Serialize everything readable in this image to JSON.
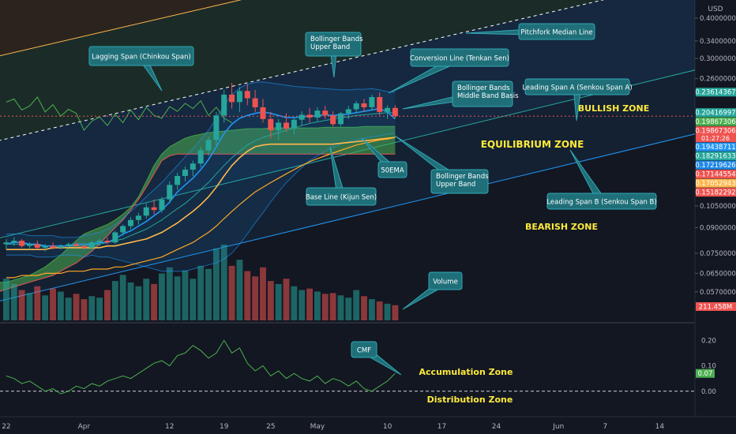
{
  "chart_data": {
    "type": "line",
    "subtype": "candlestick",
    "title": "",
    "axis_unit_label": "USD",
    "price_axis": {
      "scale": "log",
      "range": [
        0.0465,
        0.455
      ],
      "ticks": [
        {
          "label": "0.40000000",
          "value": 0.4
        },
        {
          "label": "0.34000000",
          "value": 0.34
        },
        {
          "label": "0.30000000",
          "value": 0.3
        },
        {
          "label": "0.26000000",
          "value": 0.26
        },
        {
          "label": "0.10500000",
          "value": 0.105
        },
        {
          "label": "0.09000000",
          "value": 0.09
        },
        {
          "label": "0.07500000",
          "value": 0.075
        },
        {
          "label": "0.06500000",
          "value": 0.065
        },
        {
          "label": "0.05700000",
          "value": 0.057
        }
      ]
    },
    "price_badges": [
      {
        "label": "0.23614367",
        "value": 0.23614367,
        "color": "#26a69a"
      },
      {
        "label": "0.20416997",
        "value": 0.20416997,
        "color": "#26a69a"
      },
      {
        "label": "0.19867306",
        "value": 0.19867306,
        "color": "#4caf50"
      },
      {
        "label": "0.19867306",
        "value": 0.19867306,
        "color": "#ef5350",
        "sub": "01:27:26"
      },
      {
        "label": "0.19438711",
        "value": 0.19438711,
        "color": "#2196f3"
      },
      {
        "label": "0.18291633",
        "value": 0.18291633,
        "color": "#26a69a"
      },
      {
        "label": "0.17219626",
        "value": 0.17219626,
        "color": "#1e88e5"
      },
      {
        "label": "0.17144554",
        "value": 0.17144554,
        "color": "#ef5350"
      },
      {
        "label": "0.17052943",
        "value": 0.17052943,
        "color": "#ffb74d"
      },
      {
        "label": "0.15182292",
        "value": 0.15182292,
        "color": "#ef5350"
      }
    ],
    "volume_badge": {
      "label": "211.458M",
      "color": "#ef5350"
    },
    "cmf_axis": {
      "range": [
        -0.1,
        0.26
      ],
      "ticks": [
        {
          "label": "0.20",
          "value": 0.2
        },
        {
          "label": "0.10",
          "value": 0.1
        },
        {
          "label": "0.00",
          "value": 0.0
        }
      ],
      "badge": {
        "label": "0.07",
        "value": 0.07,
        "color": "#4caf50"
      }
    },
    "time_axis": {
      "ticks": [
        {
          "label": "22",
          "index": 0
        },
        {
          "label": "Apr",
          "index": 10
        },
        {
          "label": "12",
          "index": 21
        },
        {
          "label": "19",
          "index": 28
        },
        {
          "label": "25",
          "index": 34
        },
        {
          "label": "May",
          "index": 40
        },
        {
          "label": "10",
          "index": 49
        },
        {
          "label": "17",
          "index": 56
        },
        {
          "label": "24",
          "index": 63
        },
        {
          "label": "Jun",
          "index": 71
        },
        {
          "label": "7",
          "index": 77
        },
        {
          "label": "14",
          "index": 84
        }
      ]
    },
    "candles": [
      [
        0.08,
        0.083,
        0.077,
        0.081
      ],
      [
        0.081,
        0.084,
        0.079,
        0.082
      ],
      [
        0.082,
        0.083,
        0.078,
        0.079
      ],
      [
        0.079,
        0.081,
        0.077,
        0.08
      ],
      [
        0.08,
        0.082,
        0.077,
        0.078
      ],
      [
        0.078,
        0.08,
        0.076,
        0.079
      ],
      [
        0.079,
        0.081,
        0.077,
        0.078
      ],
      [
        0.078,
        0.08,
        0.077,
        0.079
      ],
      [
        0.079,
        0.081,
        0.078,
        0.08
      ],
      [
        0.08,
        0.081,
        0.078,
        0.079
      ],
      [
        0.079,
        0.08,
        0.077,
        0.078
      ],
      [
        0.078,
        0.082,
        0.077,
        0.081
      ],
      [
        0.081,
        0.083,
        0.079,
        0.082
      ],
      [
        0.082,
        0.084,
        0.08,
        0.081
      ],
      [
        0.081,
        0.088,
        0.08,
        0.087
      ],
      [
        0.087,
        0.092,
        0.085,
        0.091
      ],
      [
        0.091,
        0.097,
        0.089,
        0.095
      ],
      [
        0.095,
        0.1,
        0.092,
        0.098
      ],
      [
        0.098,
        0.107,
        0.096,
        0.104
      ],
      [
        0.104,
        0.11,
        0.099,
        0.102
      ],
      [
        0.102,
        0.112,
        0.1,
        0.11
      ],
      [
        0.11,
        0.125,
        0.107,
        0.122
      ],
      [
        0.122,
        0.133,
        0.118,
        0.13
      ],
      [
        0.13,
        0.139,
        0.125,
        0.136
      ],
      [
        0.136,
        0.145,
        0.13,
        0.142
      ],
      [
        0.142,
        0.16,
        0.138,
        0.156
      ],
      [
        0.156,
        0.172,
        0.15,
        0.168
      ],
      [
        0.168,
        0.205,
        0.162,
        0.2
      ],
      [
        0.2,
        0.24,
        0.19,
        0.232
      ],
      [
        0.232,
        0.252,
        0.21,
        0.22
      ],
      [
        0.22,
        0.245,
        0.205,
        0.238
      ],
      [
        0.238,
        0.25,
        0.215,
        0.226
      ],
      [
        0.226,
        0.24,
        0.205,
        0.212
      ],
      [
        0.212,
        0.225,
        0.19,
        0.195
      ],
      [
        0.195,
        0.205,
        0.17,
        0.18
      ],
      [
        0.18,
        0.195,
        0.168,
        0.19
      ],
      [
        0.19,
        0.203,
        0.178,
        0.182
      ],
      [
        0.182,
        0.198,
        0.175,
        0.194
      ],
      [
        0.194,
        0.206,
        0.186,
        0.201
      ],
      [
        0.201,
        0.211,
        0.19,
        0.197
      ],
      [
        0.197,
        0.212,
        0.192,
        0.207
      ],
      [
        0.207,
        0.214,
        0.195,
        0.2
      ],
      [
        0.2,
        0.206,
        0.185,
        0.188
      ],
      [
        0.188,
        0.205,
        0.185,
        0.203
      ],
      [
        0.203,
        0.214,
        0.195,
        0.209
      ],
      [
        0.209,
        0.222,
        0.203,
        0.218
      ],
      [
        0.218,
        0.225,
        0.205,
        0.212
      ],
      [
        0.212,
        0.232,
        0.208,
        0.228
      ],
      [
        0.228,
        0.236,
        0.2,
        0.205
      ],
      [
        0.205,
        0.215,
        0.195,
        0.211
      ],
      [
        0.211,
        0.215,
        0.196,
        0.199
      ]
    ],
    "volume_relative": [
      0.55,
      0.48,
      0.4,
      0.36,
      0.45,
      0.33,
      0.42,
      0.38,
      0.3,
      0.35,
      0.28,
      0.32,
      0.3,
      0.4,
      0.52,
      0.6,
      0.5,
      0.45,
      0.55,
      0.48,
      0.62,
      0.7,
      0.58,
      0.66,
      0.55,
      0.72,
      0.68,
      0.95,
      1.0,
      0.72,
      0.8,
      0.65,
      0.58,
      0.7,
      0.52,
      0.48,
      0.55,
      0.45,
      0.4,
      0.42,
      0.38,
      0.35,
      0.36,
      0.33,
      0.3,
      0.4,
      0.32,
      0.28,
      0.25,
      0.22,
      0.2
    ],
    "cmf_values": [
      0.06,
      0.05,
      0.03,
      0.04,
      0.02,
      0.0,
      0.01,
      -0.01,
      0.0,
      0.02,
      0.01,
      0.03,
      0.02,
      0.04,
      0.05,
      0.06,
      0.05,
      0.07,
      0.09,
      0.11,
      0.12,
      0.1,
      0.14,
      0.15,
      0.18,
      0.16,
      0.13,
      0.15,
      0.2,
      0.15,
      0.17,
      0.11,
      0.08,
      0.1,
      0.06,
      0.08,
      0.05,
      0.07,
      0.05,
      0.04,
      0.06,
      0.03,
      0.05,
      0.04,
      0.02,
      0.04,
      0.01,
      0.0,
      0.02,
      0.04,
      0.07
    ],
    "bollinger_upper": [
      0.086,
      0.086,
      0.086,
      0.085,
      0.085,
      0.085,
      0.085,
      0.084,
      0.084,
      0.084,
      0.085,
      0.086,
      0.087,
      0.089,
      0.092,
      0.096,
      0.101,
      0.106,
      0.112,
      0.118,
      0.124,
      0.132,
      0.14,
      0.149,
      0.158,
      0.168,
      0.18,
      0.196,
      0.215,
      0.232,
      0.243,
      0.25,
      0.253,
      0.254,
      0.252,
      0.25,
      0.248,
      0.246,
      0.245,
      0.244,
      0.243,
      0.242,
      0.241,
      0.24,
      0.24,
      0.241,
      0.241,
      0.242,
      0.24,
      0.237,
      0.236
    ],
    "bollinger_middle": [
      0.08,
      0.08,
      0.08,
      0.08,
      0.079,
      0.079,
      0.079,
      0.079,
      0.079,
      0.079,
      0.079,
      0.08,
      0.08,
      0.081,
      0.082,
      0.083,
      0.085,
      0.087,
      0.089,
      0.092,
      0.095,
      0.099,
      0.103,
      0.107,
      0.112,
      0.118,
      0.124,
      0.132,
      0.14,
      0.148,
      0.155,
      0.162,
      0.167,
      0.171,
      0.174,
      0.177,
      0.18,
      0.183,
      0.186,
      0.189,
      0.191,
      0.193,
      0.195,
      0.197,
      0.198,
      0.2,
      0.201,
      0.202,
      0.203,
      0.204,
      0.204
    ],
    "bollinger_lower": [
      0.074,
      0.074,
      0.074,
      0.074,
      0.073,
      0.073,
      0.073,
      0.074,
      0.074,
      0.074,
      0.073,
      0.074,
      0.073,
      0.073,
      0.072,
      0.071,
      0.07,
      0.069,
      0.068,
      0.067,
      0.066,
      0.066,
      0.066,
      0.066,
      0.067,
      0.068,
      0.069,
      0.07,
      0.072,
      0.075,
      0.08,
      0.086,
      0.093,
      0.1,
      0.108,
      0.116,
      0.124,
      0.131,
      0.138,
      0.145,
      0.15,
      0.155,
      0.159,
      0.163,
      0.166,
      0.168,
      0.17,
      0.172,
      0.173,
      0.175,
      0.176
    ],
    "conversion_line": [
      0.08,
      0.081,
      0.081,
      0.08,
      0.08,
      0.079,
      0.079,
      0.079,
      0.079,
      0.08,
      0.08,
      0.08,
      0.081,
      0.081,
      0.083,
      0.086,
      0.088,
      0.091,
      0.094,
      0.098,
      0.102,
      0.108,
      0.116,
      0.122,
      0.128,
      0.136,
      0.146,
      0.16,
      0.176,
      0.188,
      0.196,
      0.2,
      0.203,
      0.205,
      0.203,
      0.2,
      0.197,
      0.197,
      0.198,
      0.199,
      0.2,
      0.201,
      0.2,
      0.201,
      0.202,
      0.204,
      0.206,
      0.208,
      0.21,
      0.205,
      0.195
    ],
    "base_line": [
      0.077,
      0.077,
      0.077,
      0.077,
      0.077,
      0.077,
      0.078,
      0.078,
      0.078,
      0.078,
      0.078,
      0.078,
      0.078,
      0.079,
      0.079,
      0.08,
      0.081,
      0.082,
      0.083,
      0.085,
      0.087,
      0.09,
      0.093,
      0.097,
      0.101,
      0.106,
      0.112,
      0.12,
      0.13,
      0.14,
      0.148,
      0.155,
      0.16,
      0.162,
      0.163,
      0.163,
      0.163,
      0.163,
      0.163,
      0.163,
      0.163,
      0.163,
      0.163,
      0.164,
      0.165,
      0.166,
      0.167,
      0.168,
      0.169,
      0.17,
      0.171
    ],
    "ema_50": [
      0.063,
      0.063,
      0.064,
      0.064,
      0.064,
      0.065,
      0.065,
      0.065,
      0.066,
      0.066,
      0.066,
      0.067,
      0.067,
      0.067,
      0.068,
      0.068,
      0.069,
      0.07,
      0.071,
      0.072,
      0.073,
      0.075,
      0.077,
      0.079,
      0.081,
      0.084,
      0.087,
      0.091,
      0.096,
      0.101,
      0.106,
      0.111,
      0.116,
      0.12,
      0.124,
      0.128,
      0.132,
      0.136,
      0.14,
      0.144,
      0.147,
      0.15,
      0.153,
      0.156,
      0.159,
      0.162,
      0.164,
      0.166,
      0.168,
      0.169,
      0.171
    ],
    "lagging_span": [
      0.22,
      0.225,
      0.208,
      0.214,
      0.228,
      0.205,
      0.216,
      0.199,
      0.209,
      0.203,
      0.18,
      0.192,
      0.198,
      0.186,
      0.202,
      0.19,
      0.208,
      0.194,
      0.212,
      0.2,
      0.196,
      0.213,
      0.206,
      0.218,
      0.21,
      0.222,
      0.2,
      0.212,
      0.196,
      0.19
    ],
    "lagging_span_offset": -25,
    "senkou_a": [
      0.056,
      0.056,
      0.056,
      0.056,
      0.056,
      0.057,
      0.057,
      0.057,
      0.057,
      0.057,
      0.058,
      0.058,
      0.058,
      0.058,
      0.058,
      0.058,
      0.058,
      0.058,
      0.058,
      0.059,
      0.059,
      0.059,
      0.06,
      0.06,
      0.06,
      0.061,
      0.061,
      0.062,
      0.063,
      0.064,
      0.066,
      0.068,
      0.071,
      0.074,
      0.078,
      0.082,
      0.086,
      0.088,
      0.09,
      0.092,
      0.095,
      0.099,
      0.104,
      0.112,
      0.125,
      0.14,
      0.152,
      0.16,
      0.165,
      0.17,
      0.173,
      0.175,
      0.177,
      0.178,
      0.179,
      0.18,
      0.181,
      0.182,
      0.182,
      0.182,
      0.183,
      0.183,
      0.183,
      0.183,
      0.183,
      0.183,
      0.183,
      0.184,
      0.184,
      0.184,
      0.184,
      0.184,
      0.185,
      0.185,
      0.185,
      0.185,
      0.185
    ],
    "senkou_b": [
      0.046,
      0.046,
      0.046,
      0.046,
      0.046,
      0.046,
      0.046,
      0.047,
      0.047,
      0.047,
      0.047,
      0.047,
      0.047,
      0.048,
      0.048,
      0.049,
      0.05,
      0.05,
      0.051,
      0.051,
      0.052,
      0.053,
      0.054,
      0.055,
      0.056,
      0.057,
      0.058,
      0.059,
      0.06,
      0.061,
      0.062,
      0.063,
      0.064,
      0.066,
      0.068,
      0.07,
      0.073,
      0.076,
      0.08,
      0.085,
      0.09,
      0.095,
      0.102,
      0.11,
      0.12,
      0.132,
      0.145,
      0.15,
      0.152,
      0.152,
      0.152,
      0.152,
      0.152,
      0.152,
      0.152,
      0.152,
      0.152,
      0.152,
      0.152,
      0.152,
      0.152,
      0.152,
      0.152,
      0.152,
      0.152,
      0.152,
      0.152,
      0.152,
      0.152,
      0.152,
      0.152,
      0.152,
      0.152,
      0.152,
      0.152,
      0.152,
      0.152
    ],
    "cloud_start_index": -26,
    "pitchfork": {
      "median": [
        [
          -12,
          0.145
        ],
        [
          84,
          0.5
        ]
      ],
      "upper": [
        [
          -12,
          0.265
        ],
        [
          84,
          0.91
        ]
      ],
      "lower": [
        [
          -12,
          0.072
        ],
        [
          84,
          0.26
        ]
      ],
      "outer_upper": [
        [
          -12,
          0.42
        ],
        [
          84,
          1.45
        ]
      ],
      "outer_lower": [
        [
          -12,
          0.046
        ],
        [
          84,
          0.165
        ]
      ]
    },
    "zones": [
      {
        "label": "BULLISH ZONE",
        "color": "#ffeb3b"
      },
      {
        "label": "EQUILIBRIUM ZONE",
        "color": "#ffeb3b"
      },
      {
        "label": "BEARISH ZONE",
        "color": "#ffeb3b"
      },
      {
        "label": "Accumulation Zone",
        "color": "#ffeb3b"
      },
      {
        "label": "Distribution Zone",
        "color": "#ffeb3b"
      }
    ],
    "annotations": [
      {
        "label": "Lagging Span (Chinkou Span)"
      },
      {
        "label": "Bollinger Bands\nUpper Band"
      },
      {
        "label": "Pitchfork Median Line"
      },
      {
        "label": "Conversion Line (Tenkan Sen)"
      },
      {
        "label": "Bollinger Bands\nMiddle Band Basis"
      },
      {
        "label": "Leading Span A (Senkou Span A)"
      },
      {
        "label": "50EMA"
      },
      {
        "label": "Base Line (Kijun Sen)"
      },
      {
        "label": "Bollinger Bands\nUpper Band"
      },
      {
        "label": "Leading Span B (Senkou Span B)"
      },
      {
        "label": "Volume"
      },
      {
        "label": "CMF"
      }
    ]
  },
  "colors": {
    "background": "#131722",
    "up": "#26a69a",
    "down": "#ef5350",
    "annotation_bg": "#1f6f79",
    "annotation_border": "#32a8b5",
    "annotation_text": "#ffffff",
    "axis_text": "#b2b5be",
    "grid": "#1e2230"
  }
}
